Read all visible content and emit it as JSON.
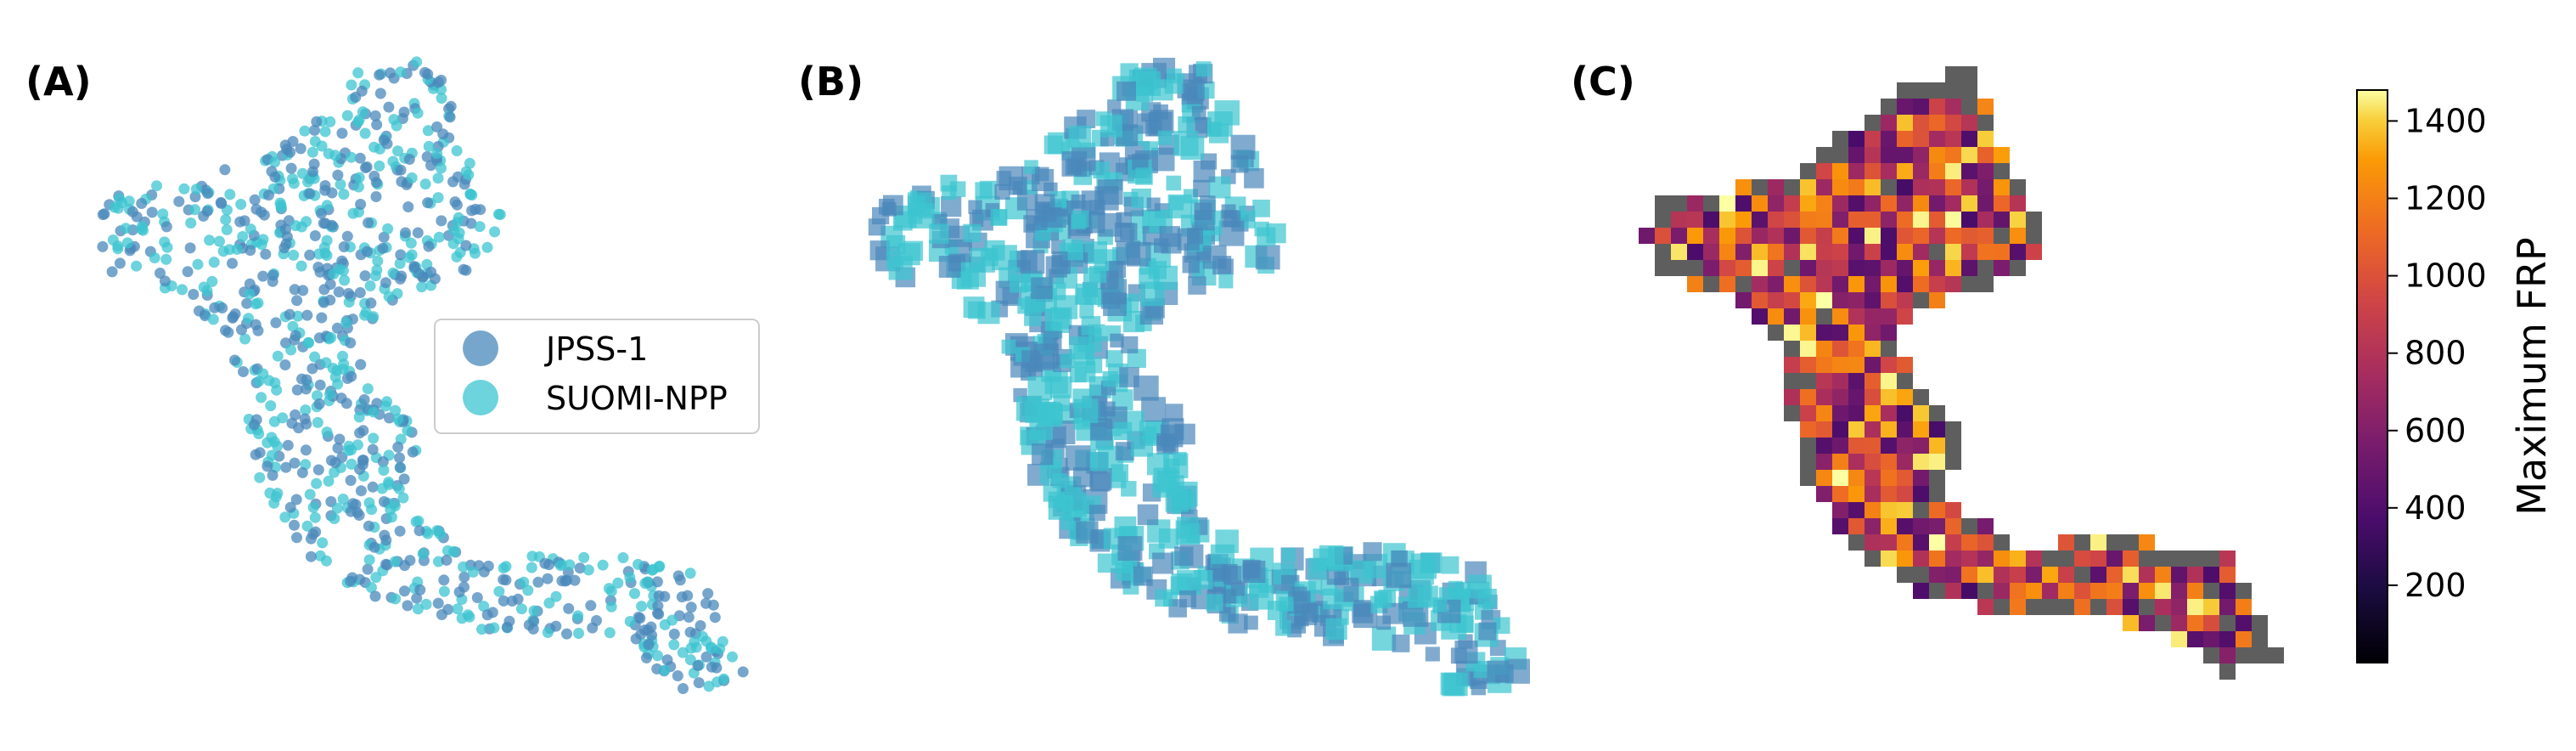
{
  "chart_data": [
    {
      "type": "scatter",
      "panel_label": "(A)",
      "legend_placement": "center-right",
      "series": [
        {
          "name": "JPSS-1",
          "color": "#4a88bb"
        },
        {
          "name": "SUOMI-NPP",
          "color": "#3cc4d0"
        }
      ],
      "grid": false,
      "axes_visible": false
    },
    {
      "type": "scatter",
      "panel_label": "(B)",
      "marker": "square",
      "series_colors": [
        "#4a88bb",
        "#3cc4d0"
      ],
      "grid": false,
      "axes_visible": false
    },
    {
      "type": "heatmap",
      "panel_label": "(C)",
      "colormap": "inferno",
      "missing_color": "#5e5e5e",
      "grid": false,
      "axes_visible": false,
      "colorbar": {
        "label": "Maximum FRP",
        "range": [
          0,
          1480
        ],
        "ticks": [
          "200",
          "400",
          "600",
          "800",
          "1000",
          "1200",
          "1400"
        ],
        "placement": "right"
      }
    }
  ]
}
